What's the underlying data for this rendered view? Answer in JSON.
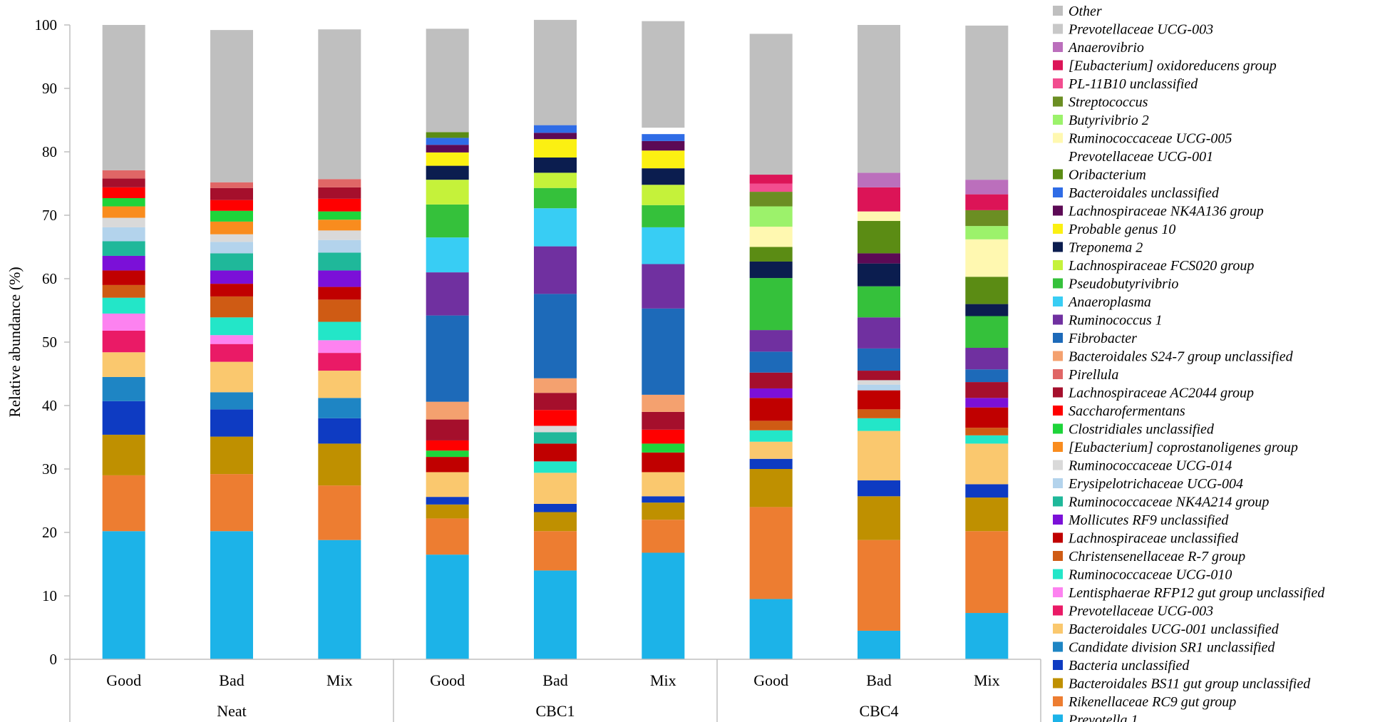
{
  "chart_data": {
    "type": "bar",
    "stacked": true,
    "title": "",
    "xlabel": "",
    "ylabel": "Relative abundance (%)",
    "ylim": [
      0,
      100
    ],
    "yticks": [
      0,
      10,
      20,
      30,
      40,
      50,
      60,
      70,
      80,
      90,
      100
    ],
    "groups": [
      {
        "label": "Neat",
        "categories": [
          "Good",
          "Bad",
          "Mix"
        ]
      },
      {
        "label": "CBC1",
        "categories": [
          "Good",
          "Bad",
          "Mix"
        ]
      },
      {
        "label": "CBC4",
        "categories": [
          "Good",
          "Bad",
          "Mix"
        ]
      }
    ],
    "series": [
      {
        "name": "Prevotella 1",
        "color": "#1cb3e8",
        "values": [
          20.2,
          20.2,
          18.8,
          16.5,
          14.0,
          16.8,
          9.5,
          4.5,
          7.3
        ]
      },
      {
        "name": "Rikenellaceae RC9 gut group",
        "color": "#ed7d31",
        "values": [
          8.8,
          9.0,
          8.6,
          5.7,
          6.2,
          5.2,
          14.5,
          14.3,
          12.9
        ]
      },
      {
        "name": "Bacteroidales BS11 gut group unclassified",
        "color": "#bf9000",
        "values": [
          6.4,
          5.9,
          6.6,
          2.2,
          3.0,
          2.7,
          6.0,
          6.9,
          5.3
        ]
      },
      {
        "name": "Bacteria unclassified",
        "color": "#0e3bc2",
        "values": [
          5.3,
          4.3,
          4.0,
          1.2,
          1.3,
          1.0,
          1.6,
          2.5,
          2.1
        ]
      },
      {
        "name": "Candidate division SR1 unclassified",
        "color": "#1e85c4",
        "values": [
          3.8,
          2.7,
          3.2,
          0,
          0,
          0,
          0,
          0,
          0
        ]
      },
      {
        "name": "Bacteroidales UCG-001 unclassified",
        "color": "#fac86e",
        "values": [
          3.9,
          4.8,
          4.3,
          3.9,
          4.9,
          3.8,
          2.7,
          7.8,
          6.4
        ]
      },
      {
        "name": "Prevotellaceae UCG-003",
        "color": "#ea1a66",
        "values": [
          3.4,
          2.8,
          2.8,
          0,
          0,
          0,
          0,
          0,
          0
        ]
      },
      {
        "name": "Lentisphaerae RFP12 gut group unclassified",
        "color": "#fd82f0",
        "values": [
          2.7,
          1.4,
          2.0,
          0,
          0,
          0,
          0,
          0,
          0
        ]
      },
      {
        "name": "Ruminococcaceae UCG-010",
        "color": "#23e6c8",
        "values": [
          2.5,
          2.8,
          2.9,
          0,
          1.8,
          0,
          1.8,
          2.0,
          1.3
        ]
      },
      {
        "name": "Christensenellaceae R-7 group",
        "color": "#cf5b14",
        "values": [
          2.0,
          3.3,
          3.5,
          0,
          0,
          0,
          1.5,
          1.4,
          1.2
        ]
      },
      {
        "name": "Lachnospiraceae unclassified",
        "color": "#c00000",
        "values": [
          2.3,
          2.0,
          2.0,
          2.4,
          2.8,
          3.1,
          3.6,
          3.0,
          3.2
        ]
      },
      {
        "name": "Mollicutes RF9 unclassified",
        "color": "#7b10d8",
        "values": [
          2.3,
          2.1,
          2.6,
          0,
          0,
          0,
          1.5,
          0,
          1.5
        ]
      },
      {
        "name": "Ruminococcaceae NK4A214 group",
        "color": "#1fb89a",
        "values": [
          2.3,
          2.7,
          2.8,
          0,
          1.8,
          0,
          0,
          0,
          0
        ]
      },
      {
        "name": "Erysipelotrichaceae UCG-004",
        "color": "#b3d3ec",
        "values": [
          2.2,
          1.8,
          2.0,
          0,
          0,
          0,
          0,
          0.9,
          0
        ]
      },
      {
        "name": "Ruminococcaceae UCG-014",
        "color": "#d9d9d9",
        "values": [
          1.5,
          1.2,
          1.5,
          0,
          1.0,
          0,
          0,
          0.7,
          0
        ]
      },
      {
        "name": "[Eubacterium] coprostanoligenes group",
        "color": "#f98c1e",
        "values": [
          1.8,
          2.0,
          1.7,
          0,
          0,
          0,
          0,
          0,
          0
        ]
      },
      {
        "name": "Clostridiales unclassified",
        "color": "#1ed43a",
        "values": [
          1.3,
          1.7,
          1.3,
          1.0,
          0,
          1.4,
          0,
          0,
          0
        ]
      },
      {
        "name": "Saccharofermentans",
        "color": "#ff0000",
        "values": [
          1.7,
          1.7,
          2.0,
          1.6,
          2.5,
          2.2,
          0,
          0,
          0
        ]
      },
      {
        "name": "Lachnospiraceae AC2044 group",
        "color": "#a50f2c",
        "values": [
          1.4,
          1.9,
          1.8,
          3.3,
          2.7,
          2.8,
          2.5,
          1.5,
          2.5
        ]
      },
      {
        "name": "Pirellula",
        "color": "#e06666",
        "values": [
          1.3,
          0.9,
          1.3,
          0,
          0,
          0,
          0,
          0,
          0
        ]
      },
      {
        "name": "Bacteroidales S24-7 group unclassified",
        "color": "#f4a16f",
        "values": [
          0,
          0,
          0,
          2.8,
          2.3,
          2.7,
          0,
          0,
          0
        ]
      },
      {
        "name": "Fibrobacter",
        "color": "#1d6ab9",
        "values": [
          0,
          0,
          0,
          13.6,
          13.3,
          13.6,
          3.3,
          3.5,
          2.0
        ]
      },
      {
        "name": "Ruminococcus 1",
        "color": "#7030a0",
        "values": [
          0,
          0,
          0,
          6.8,
          7.5,
          7.0,
          3.4,
          4.9,
          3.4
        ]
      },
      {
        "name": "Anaeroplasma",
        "color": "#38cdf4",
        "values": [
          0,
          0,
          0,
          5.5,
          6.0,
          5.8,
          0,
          0,
          0
        ]
      },
      {
        "name": "Pseudobutyrivibrio",
        "color": "#35c13b",
        "values": [
          0,
          0,
          0,
          5.2,
          3.2,
          3.5,
          8.2,
          4.9,
          5.0
        ]
      },
      {
        "name": "Lachnospiraceae FCS020 group",
        "color": "#c5f23a",
        "values": [
          0,
          0,
          0,
          3.9,
          2.4,
          3.2,
          0,
          0,
          0
        ]
      },
      {
        "name": "Treponema 2",
        "color": "#0b1d4f",
        "values": [
          0,
          0,
          0,
          2.2,
          2.4,
          2.6,
          2.6,
          3.6,
          1.9
        ]
      },
      {
        "name": "Probable genus 10",
        "color": "#fbf012",
        "values": [
          0,
          0,
          0,
          2.1,
          2.9,
          2.8,
          0,
          0,
          0
        ]
      },
      {
        "name": "Lachnospiraceae NK4A136 group",
        "color": "#5c0a55",
        "values": [
          0,
          0,
          0,
          1.2,
          1.0,
          1.5,
          0,
          1.6,
          0
        ]
      },
      {
        "name": "Bacteroidales unclassified",
        "color": "#2f6ce6",
        "values": [
          0,
          0,
          0,
          1.1,
          1.2,
          1.1,
          0,
          0,
          0
        ]
      },
      {
        "name": "Oribacterium",
        "color": "#5b8c14",
        "values": [
          0,
          0,
          0,
          0.9,
          0,
          0,
          2.3,
          5.1,
          4.3
        ]
      },
      {
        "name": "Prevotellaceae UCG-001",
        "color": "#ffffff",
        "values": [
          0,
          0,
          0,
          0,
          0,
          1.0,
          0,
          0,
          0
        ]
      },
      {
        "name": "Ruminococcaceae UCG-005",
        "color": "#fff8b0",
        "values": [
          0,
          0,
          0,
          0,
          0,
          0,
          3.2,
          1.5,
          5.9
        ]
      },
      {
        "name": "Butyrivibrio 2",
        "color": "#9cf26b",
        "values": [
          0,
          0,
          0,
          0,
          0,
          0,
          3.2,
          0,
          2.1
        ]
      },
      {
        "name": "Streptococcus",
        "color": "#6b8e23",
        "values": [
          0,
          0,
          0,
          0,
          0,
          0,
          2.3,
          0,
          2.5
        ]
      },
      {
        "name": "PL-11B10 unclassified",
        "color": "#f24d8f",
        "values": [
          0,
          0,
          0,
          0,
          0,
          0,
          1.3,
          0,
          0
        ]
      },
      {
        "name": "[Eubacterium] oxidoreducens group",
        "color": "#dc1457",
        "values": [
          0,
          0,
          0,
          0,
          0,
          0,
          1.4,
          3.8,
          2.5
        ]
      },
      {
        "name": "Anaerovibrio",
        "color": "#bb6fbc",
        "values": [
          0,
          0,
          0,
          0,
          0,
          0,
          0,
          2.3,
          2.3
        ]
      },
      {
        "name": "Prevotellaceae UCG-003",
        "color": "#c8c8c8",
        "values": [
          0,
          0,
          0,
          0,
          0,
          0,
          0,
          0,
          0
        ]
      },
      {
        "name": "Other",
        "color": "#bfbfbf",
        "values": [
          22.9,
          24.0,
          23.6,
          16.3,
          16.6,
          16.8,
          22.2,
          23.3,
          24.3
        ]
      }
    ]
  }
}
